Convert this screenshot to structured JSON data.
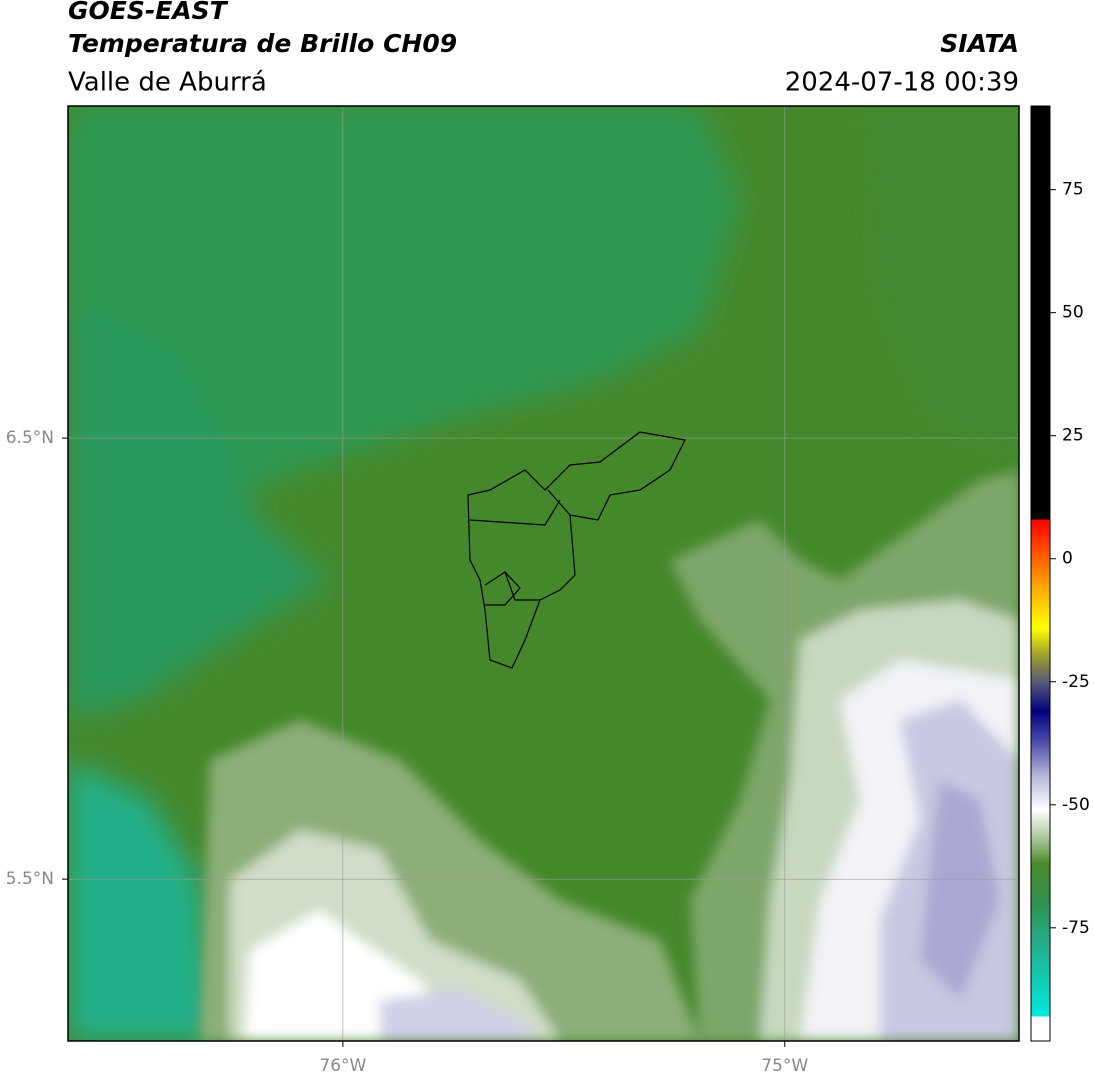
{
  "header": {
    "title": "GOES-EAST",
    "subtitle": "Temperatura de Brillo CH09",
    "region": "Valle de Aburrá",
    "source": "SIATA",
    "datetime": "2024-07-18 00:39"
  },
  "map": {
    "xlim": [
      -76.622,
      -74.47
    ],
    "ylim": [
      5.133,
      7.253
    ],
    "xticks": [
      {
        "value": -76,
        "label": "76°W"
      },
      {
        "value": -75,
        "label": "75°W"
      }
    ],
    "yticks": [
      {
        "value": 6.5,
        "label": "6.5°N"
      },
      {
        "value": 5.5,
        "label": "5.5°N"
      }
    ],
    "grid": true
  },
  "colorbar": {
    "lim": [
      -98,
      92
    ],
    "ticks": [
      75,
      50,
      25,
      0,
      -25,
      -50,
      -75
    ],
    "stops": [
      {
        "value": -98,
        "color": "#ffffff"
      },
      {
        "value": -93,
        "color": "#ffffff"
      },
      {
        "value": -93,
        "color": "#00e8dc"
      },
      {
        "value": -80,
        "color": "#22b595"
      },
      {
        "value": -70,
        "color": "#2f9050"
      },
      {
        "value": -62,
        "color": "#4a8a2a"
      },
      {
        "value": -57,
        "color": "#a8c596"
      },
      {
        "value": -51,
        "color": "#ffffff"
      },
      {
        "value": -44,
        "color": "#b4b4da"
      },
      {
        "value": -37,
        "color": "#4a4aa8"
      },
      {
        "value": -31,
        "color": "#000080"
      },
      {
        "value": -25,
        "color": "#5a5a78"
      },
      {
        "value": -20,
        "color": "#9a9a30"
      },
      {
        "value": -14,
        "color": "#ffff00"
      },
      {
        "value": -5,
        "color": "#ffa000"
      },
      {
        "value": 8,
        "color": "#ff0000"
      },
      {
        "value": 8,
        "color": "#000000"
      },
      {
        "value": 92,
        "color": "#000000"
      }
    ]
  }
}
